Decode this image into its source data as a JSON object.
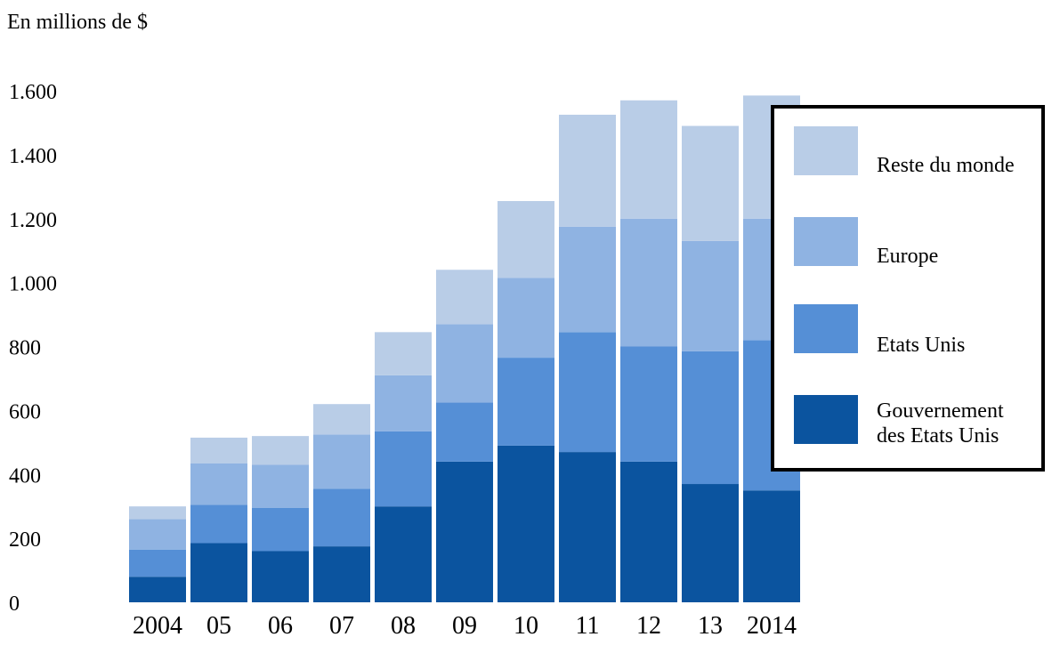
{
  "unit_label": "En millions de $",
  "colors": {
    "reste_du_monde": "#b9cde7",
    "europe": "#8fb3e2",
    "etats_unis": "#558fd6",
    "gouvernement": "#0b549f"
  },
  "legend": [
    {
      "key": "reste_du_monde",
      "label": "Reste du monde"
    },
    {
      "key": "europe",
      "label": "Europe"
    },
    {
      "key": "etats_unis",
      "label": "Etats Unis"
    },
    {
      "key": "gouvernement",
      "label": "Gouvernement\ndes Etats Unis"
    }
  ],
  "chart_data": {
    "type": "bar",
    "stacked": true,
    "categories": [
      "2004",
      "05",
      "06",
      "07",
      "08",
      "09",
      "10",
      "11",
      "12",
      "13",
      "2014"
    ],
    "ylim": [
      0,
      1600
    ],
    "yticks": [
      {
        "value": 0,
        "label": "0"
      },
      {
        "value": 200,
        "label": "200"
      },
      {
        "value": 400,
        "label": "400"
      },
      {
        "value": 600,
        "label": "600"
      },
      {
        "value": 800,
        "label": "800"
      },
      {
        "value": 1000,
        "label": "1.000"
      },
      {
        "value": 1200,
        "label": "1.200"
      },
      {
        "value": 1400,
        "label": "1.400"
      },
      {
        "value": 1600,
        "label": "1.600"
      }
    ],
    "series": [
      {
        "name": "Gouvernement des Etats Unis",
        "color_key": "gouvernement",
        "values": [
          80,
          185,
          160,
          175,
          300,
          440,
          490,
          470,
          440,
          370,
          350
        ]
      },
      {
        "name": "Etats Unis",
        "color_key": "etats_unis",
        "values": [
          85,
          120,
          135,
          180,
          235,
          185,
          275,
          375,
          360,
          415,
          470
        ]
      },
      {
        "name": "Europe",
        "color_key": "europe",
        "values": [
          95,
          130,
          135,
          170,
          175,
          245,
          250,
          330,
          400,
          345,
          380
        ]
      },
      {
        "name": "Reste du monde",
        "color_key": "reste_du_monde",
        "values": [
          40,
          80,
          90,
          95,
          135,
          170,
          240,
          350,
          370,
          360,
          385
        ]
      }
    ],
    "grid": false,
    "legend_position": "right"
  }
}
